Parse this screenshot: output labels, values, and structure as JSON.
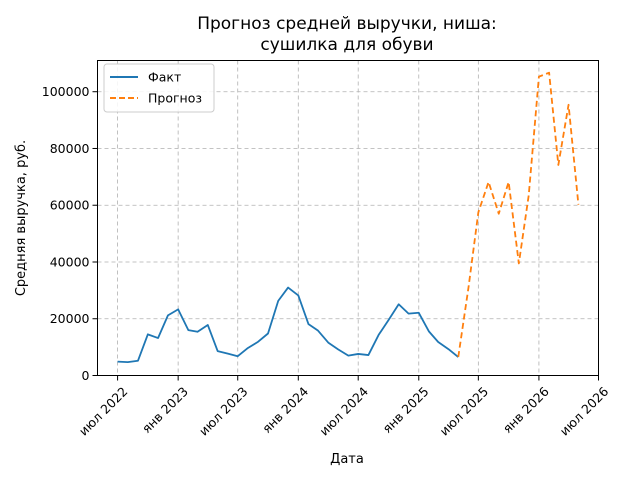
{
  "chart_data": {
    "type": "line",
    "title": [
      "Прогноз средней выручки, ниша:",
      "сушилка для обуви"
    ],
    "xlabel": "Дата",
    "ylabel": "Средняя выручка, руб.",
    "xlim": [
      "2022-05-01",
      "2026-07-01"
    ],
    "ylim": [
      0,
      111000
    ],
    "grid": true,
    "legend_position": "top-left",
    "x_ticks": [
      {
        "date": "2022-07-01",
        "label": "июл 2022"
      },
      {
        "date": "2023-01-01",
        "label": "янв 2023"
      },
      {
        "date": "2023-07-01",
        "label": "июл 2023"
      },
      {
        "date": "2024-01-01",
        "label": "янв 2024"
      },
      {
        "date": "2024-07-01",
        "label": "июл 2024"
      },
      {
        "date": "2025-01-01",
        "label": "янв 2025"
      },
      {
        "date": "2025-07-01",
        "label": "июл 2025"
      },
      {
        "date": "2026-01-01",
        "label": "янв 2026"
      },
      {
        "date": "2026-07-01",
        "label": "июл 2026"
      }
    ],
    "y_ticks": [
      {
        "value": 0,
        "label": "0"
      },
      {
        "value": 20000,
        "label": "20000"
      },
      {
        "value": 40000,
        "label": "40000"
      },
      {
        "value": 60000,
        "label": "60000"
      },
      {
        "value": 80000,
        "label": "80000"
      },
      {
        "value": 100000,
        "label": "100000"
      }
    ],
    "series": [
      {
        "name": "Факт",
        "color": "#1f77b4",
        "style": "solid",
        "points": [
          [
            "2022-07-01",
            4900
          ],
          [
            "2022-08-01",
            4700
          ],
          [
            "2022-09-01",
            5200
          ],
          [
            "2022-10-01",
            14500
          ],
          [
            "2022-11-01",
            13200
          ],
          [
            "2022-12-01",
            21200
          ],
          [
            "2023-01-01",
            23300
          ],
          [
            "2023-02-01",
            16000
          ],
          [
            "2023-03-01",
            15400
          ],
          [
            "2023-04-01",
            17800
          ],
          [
            "2023-05-01",
            8600
          ],
          [
            "2023-06-01",
            7700
          ],
          [
            "2023-07-01",
            6800
          ],
          [
            "2023-08-01",
            9700
          ],
          [
            "2023-09-01",
            11900
          ],
          [
            "2023-10-01",
            14800
          ],
          [
            "2023-11-01",
            26300
          ],
          [
            "2023-12-01",
            31000
          ],
          [
            "2024-01-01",
            28200
          ],
          [
            "2024-02-01",
            18100
          ],
          [
            "2024-03-01",
            15800
          ],
          [
            "2024-04-01",
            11600
          ],
          [
            "2024-05-01",
            9200
          ],
          [
            "2024-06-01",
            7000
          ],
          [
            "2024-07-01",
            7600
          ],
          [
            "2024-08-01",
            7200
          ],
          [
            "2024-09-01",
            14300
          ],
          [
            "2024-10-01",
            19500
          ],
          [
            "2024-11-01",
            25100
          ],
          [
            "2024-12-01",
            21800
          ],
          [
            "2025-01-01",
            22100
          ],
          [
            "2025-02-01",
            15500
          ],
          [
            "2025-03-01",
            11800
          ],
          [
            "2025-04-01",
            9300
          ],
          [
            "2025-05-01",
            6500
          ]
        ]
      },
      {
        "name": "Прогноз",
        "color": "#ff7f0e",
        "style": "dashed",
        "points": [
          [
            "2025-05-01",
            6500
          ],
          [
            "2025-06-01",
            31000
          ],
          [
            "2025-07-01",
            57500
          ],
          [
            "2025-08-01",
            68200
          ],
          [
            "2025-09-01",
            57000
          ],
          [
            "2025-10-01",
            68200
          ],
          [
            "2025-11-01",
            39500
          ],
          [
            "2025-12-01",
            63500
          ],
          [
            "2026-01-01",
            105300
          ],
          [
            "2026-02-01",
            106700
          ],
          [
            "2026-03-01",
            74200
          ],
          [
            "2026-04-01",
            95400
          ],
          [
            "2026-05-01",
            60200
          ]
        ]
      }
    ]
  }
}
